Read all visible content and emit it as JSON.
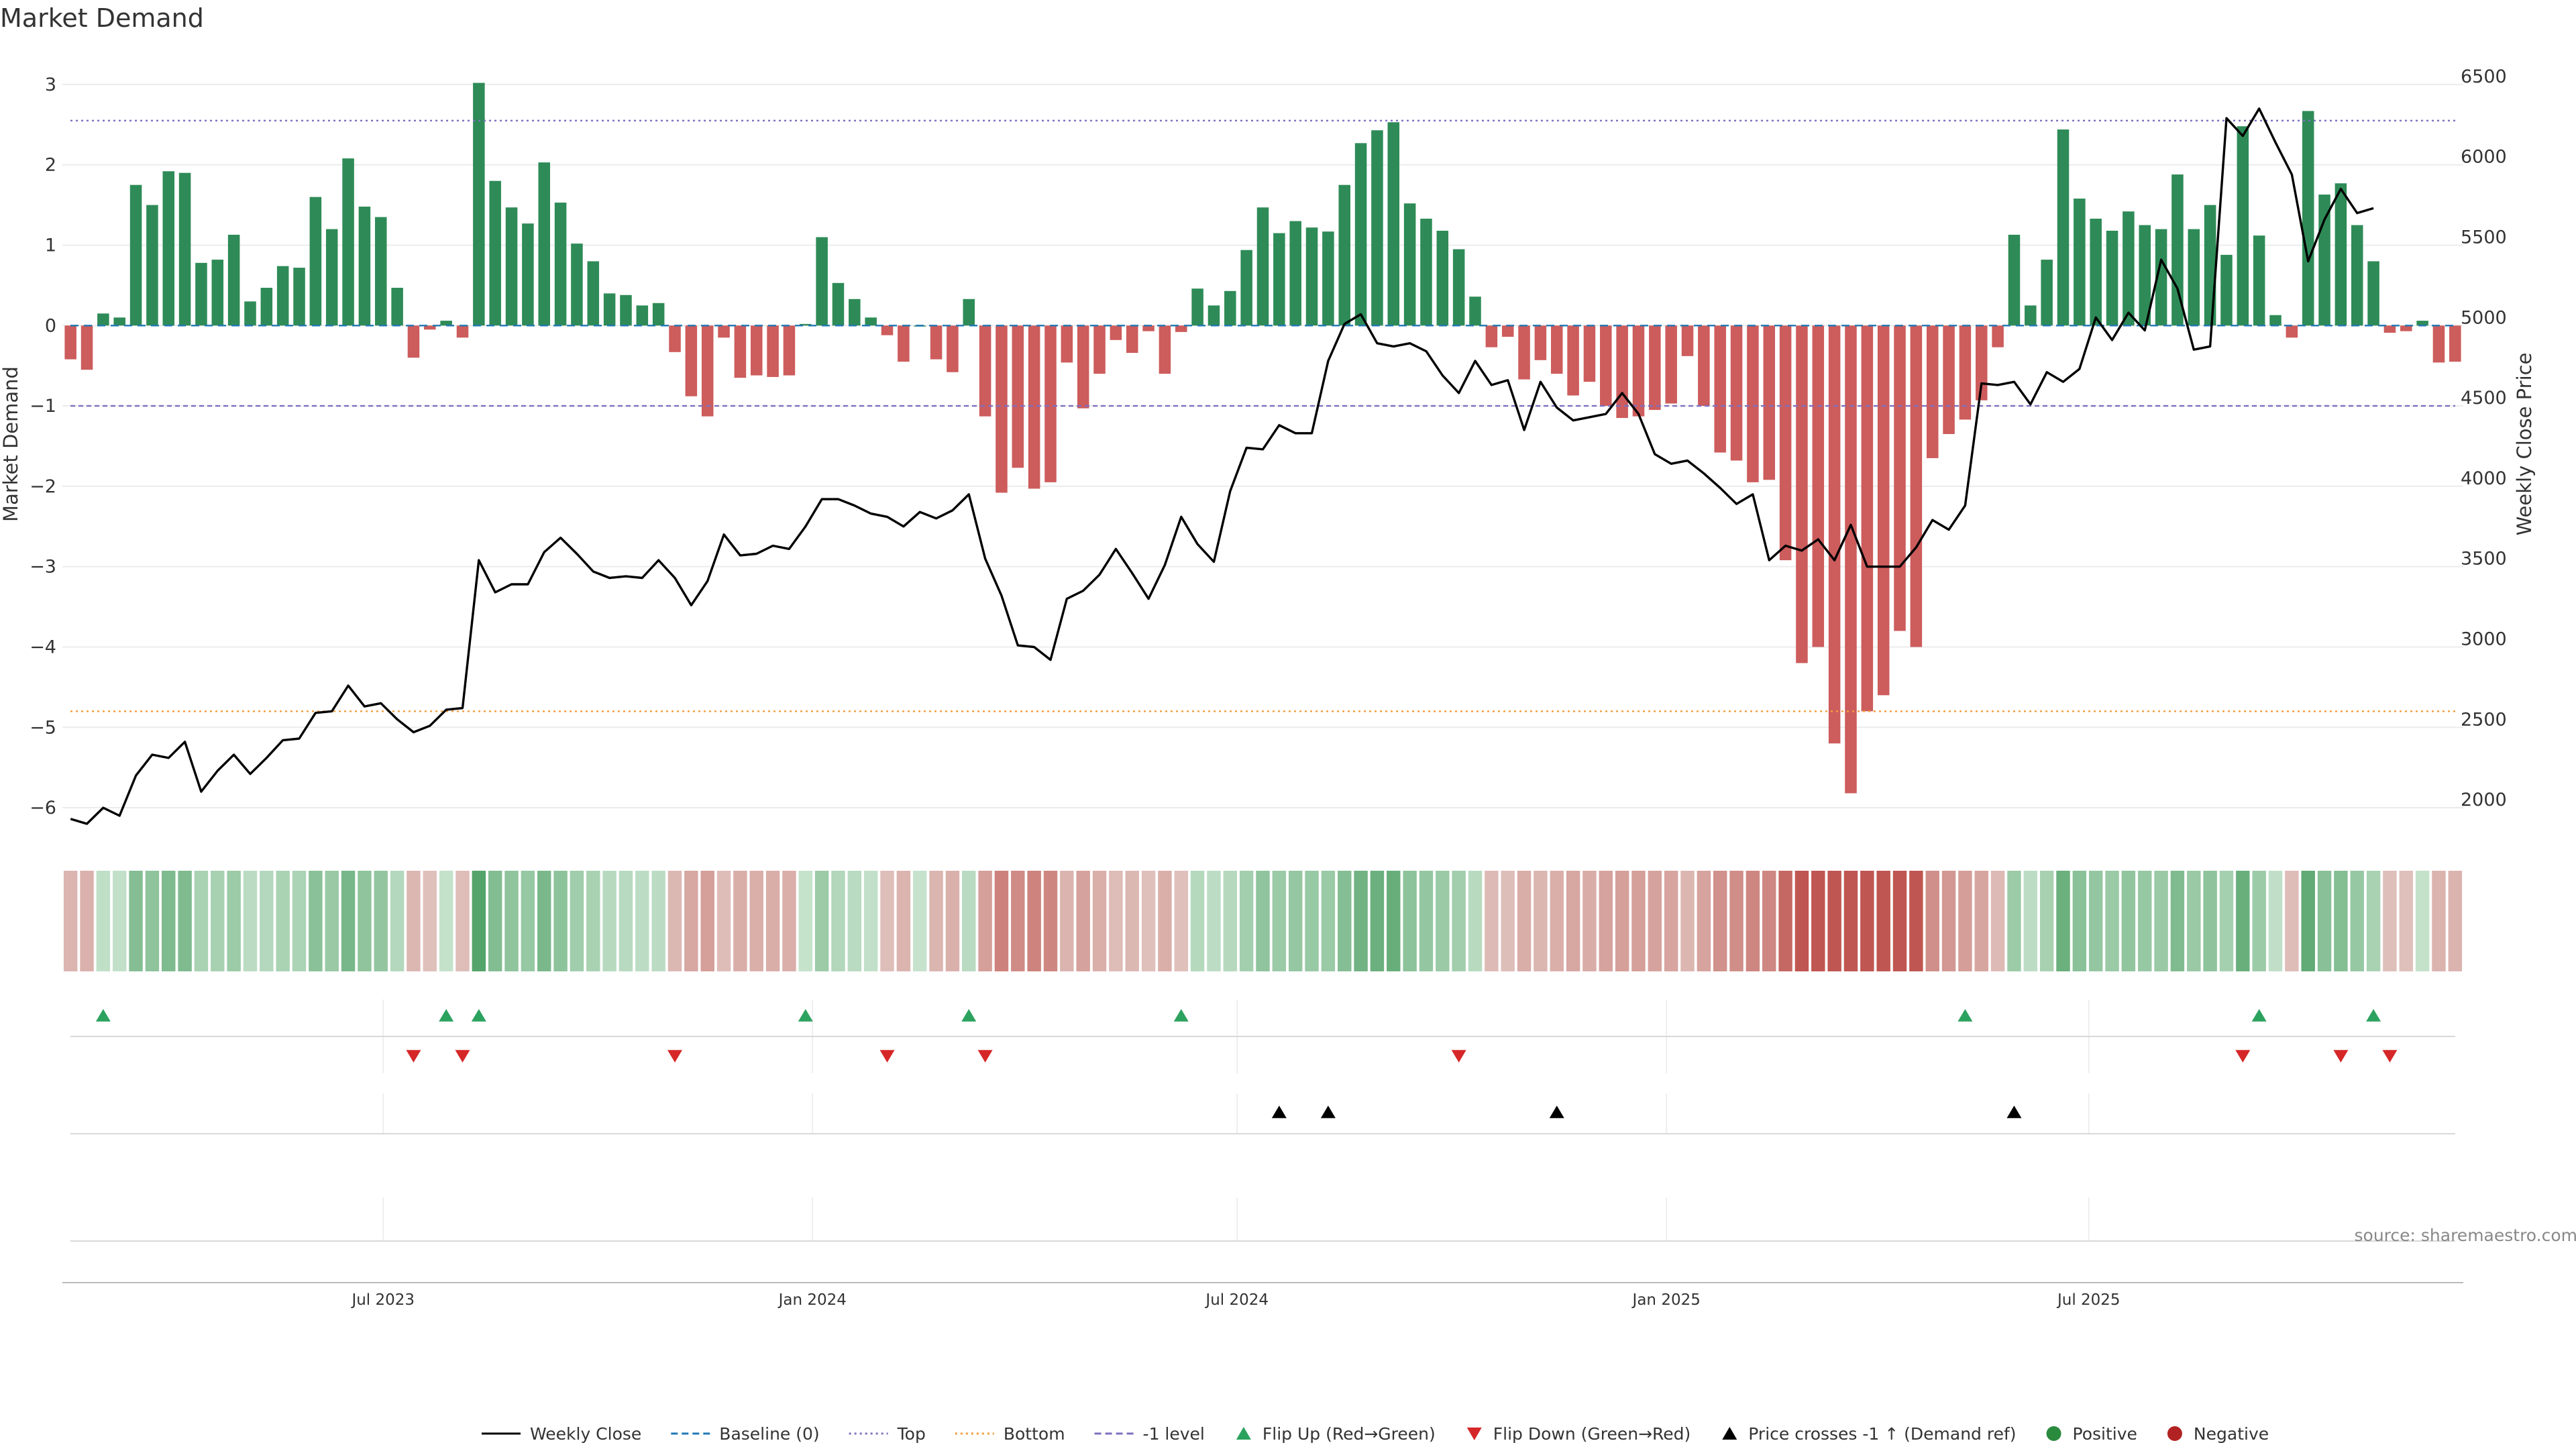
{
  "chart_data": {
    "type": "bar",
    "title": "Market Demand",
    "ylabel": "Market Demand",
    "y2label": "Weekly Close Price",
    "ylim": [
      -6.3,
      3.4
    ],
    "y2lim": [
      1800,
      6650
    ],
    "yticks": [
      "−6",
      "−5",
      "−4",
      "−3",
      "−2",
      "−1",
      "0",
      "1",
      "2",
      "3"
    ],
    "yticks_values": [
      -6,
      -5,
      -4,
      -3,
      -2,
      -1,
      0,
      1,
      2,
      3
    ],
    "y2ticks": [
      "2000",
      "2500",
      "3000",
      "3500",
      "4000",
      "4500",
      "5000",
      "5500",
      "6000",
      "6500"
    ],
    "y2ticks_values": [
      2000,
      2500,
      3000,
      3500,
      4000,
      4500,
      5000,
      5500,
      6000,
      6500
    ],
    "x_start": "2023-02-17",
    "x_interval_days": 7,
    "x_ticks": [
      {
        "label": "Jul 2023",
        "date": "2023-07-01"
      },
      {
        "label": "Jan 2024",
        "date": "2024-01-01"
      },
      {
        "label": "Jul 2024",
        "date": "2024-07-01"
      },
      {
        "label": "Jan 2025",
        "date": "2025-01-01"
      },
      {
        "label": "Jul 2025",
        "date": "2025-07-01"
      }
    ],
    "reference_lines": [
      {
        "name": "Top",
        "value": 2.55,
        "color": "#7f6fbf",
        "style": "dotted"
      },
      {
        "name": "-1 level",
        "value": -1.0,
        "color": "#7f6fbf",
        "style": "dashed"
      },
      {
        "name": "Bottom",
        "value": -4.8,
        "color": "#f39c3c",
        "style": "dotted"
      }
    ],
    "series": [
      {
        "name": "Market Demand",
        "type": "bar",
        "values": [
          -0.42,
          -0.55,
          0.15,
          0.1,
          1.75,
          1.5,
          1.92,
          1.9,
          0.78,
          0.82,
          1.13,
          0.3,
          0.47,
          0.74,
          0.72,
          1.6,
          1.2,
          2.08,
          1.48,
          1.35,
          0.47,
          -0.4,
          -0.05,
          0.06,
          -0.15,
          3.02,
          1.8,
          1.47,
          1.27,
          2.03,
          1.53,
          1.02,
          0.8,
          0.4,
          0.38,
          0.25,
          0.28,
          -0.33,
          -0.88,
          -1.13,
          -0.15,
          -0.65,
          -0.62,
          -0.64,
          -0.62,
          0.02,
          1.1,
          0.53,
          0.33,
          0.1,
          -0.12,
          -0.45,
          0.0,
          -0.42,
          -0.58,
          0.33,
          -1.13,
          -2.08,
          -1.77,
          -2.03,
          -1.95,
          -0.46,
          -1.03,
          -0.6,
          -0.18,
          -0.34,
          -0.07,
          -0.6,
          -0.08,
          0.46,
          0.25,
          0.43,
          0.94,
          1.47,
          1.15,
          1.3,
          1.22,
          1.17,
          1.75,
          2.27,
          2.43,
          2.53,
          1.52,
          1.33,
          1.18,
          0.95,
          0.36,
          -0.27,
          -0.14,
          -0.67,
          -0.43,
          -0.6,
          -0.87,
          -0.7,
          -1.0,
          -1.15,
          -1.13,
          -1.05,
          -0.97,
          -0.38,
          -1.0,
          -1.58,
          -1.68,
          -1.95,
          -1.92,
          -2.92,
          -4.2,
          -4.0,
          -5.2,
          -5.82,
          -4.8,
          -4.6,
          -3.8,
          -4.0,
          -1.65,
          -1.35,
          -1.17,
          -0.93,
          -0.27,
          1.13,
          0.25,
          0.82,
          2.44,
          1.58,
          1.33,
          1.18,
          1.42,
          1.25,
          1.2,
          1.88,
          1.2,
          1.5,
          0.88,
          2.48,
          1.12,
          0.13,
          -0.15,
          2.67,
          1.63,
          1.77,
          1.25,
          0.8,
          -0.09,
          -0.07,
          0.06,
          -0.46,
          -0.45
        ]
      },
      {
        "name": "Weekly Close",
        "type": "line",
        "axis": "right",
        "values": [
          1880,
          1850,
          1950,
          1900,
          2150,
          2280,
          2260,
          2360,
          2050,
          2180,
          2280,
          2160,
          2260,
          2370,
          2380,
          2540,
          2550,
          2710,
          2580,
          2600,
          2500,
          2420,
          2460,
          2560,
          2570,
          3490,
          3290,
          3340,
          3340,
          3540,
          3630,
          3530,
          3420,
          3380,
          3390,
          3380,
          3490,
          3380,
          3210,
          3360,
          3650,
          3520,
          3530,
          3580,
          3560,
          3700,
          3870,
          3870,
          3830,
          3780,
          3760,
          3700,
          3790,
          3750,
          3800,
          3900,
          3500,
          3270,
          2960,
          2950,
          2870,
          3250,
          3300,
          3400,
          3560,
          3410,
          3250,
          3460,
          3760,
          3590,
          3480,
          3920,
          4190,
          4180,
          4330,
          4280,
          4280,
          4730,
          4960,
          5020,
          4840,
          4820,
          4840,
          4790,
          4640,
          4530,
          4730,
          4580,
          4610,
          4300,
          4600,
          4440,
          4360,
          4380,
          4400,
          4530,
          4400,
          4150,
          4090,
          4110,
          4030,
          3940,
          3840,
          3900,
          3490,
          3580,
          3550,
          3620,
          3490,
          3710,
          3450,
          3450,
          3450,
          3570,
          3740,
          3680,
          3830,
          4590,
          4580,
          4600,
          4460,
          4660,
          4600,
          4680,
          5000,
          4860,
          5030,
          4920,
          5360,
          5180,
          4800,
          4820,
          6240,
          6130,
          6300,
          6090,
          5890,
          5350,
          5610,
          5800,
          5650,
          5680
        ]
      }
    ],
    "heat_strip": {
      "label": "demand heat strip"
    },
    "events": {
      "flip_up_indices": [
        2,
        23,
        25,
        45,
        55,
        68,
        116,
        134,
        141
      ],
      "flip_down_indices": [
        21,
        24,
        37,
        50,
        56,
        85,
        133,
        139,
        142
      ],
      "price_cross_indices": [
        74,
        77,
        91,
        119
      ]
    },
    "legend_position": "bottom-center",
    "grid": true
  },
  "legend": [
    {
      "label": "Weekly Close",
      "symbol": "line-solid",
      "color": "#000000"
    },
    {
      "label": "Baseline (0)",
      "symbol": "line-dashed",
      "color": "#1f77b4"
    },
    {
      "label": "Top",
      "symbol": "line-dotted",
      "color": "#7f6fbf"
    },
    {
      "label": "Bottom",
      "symbol": "line-dotted",
      "color": "#f39c3c"
    },
    {
      "label": "-1 level",
      "symbol": "line-dashed",
      "color": "#7f6fbf"
    },
    {
      "label": "Flip Up (Red→Green)",
      "symbol": "triangle-up",
      "color": "#2ca25f"
    },
    {
      "label": "Flip Down (Green→Red)",
      "symbol": "triangle-down",
      "color": "#d62728"
    },
    {
      "label": "Price crosses -1 ↑ (Demand ref)",
      "symbol": "triangle-up",
      "color": "#000000"
    },
    {
      "label": "Positive",
      "symbol": "circle",
      "color": "#2a8a3e"
    },
    {
      "label": "Negative",
      "symbol": "circle",
      "color": "#b22222"
    }
  ],
  "source": "source: sharemaestro.com",
  "colors": {
    "positive": "#2e8b57",
    "negative": "#cd5c5c",
    "price_line": "#000000"
  }
}
